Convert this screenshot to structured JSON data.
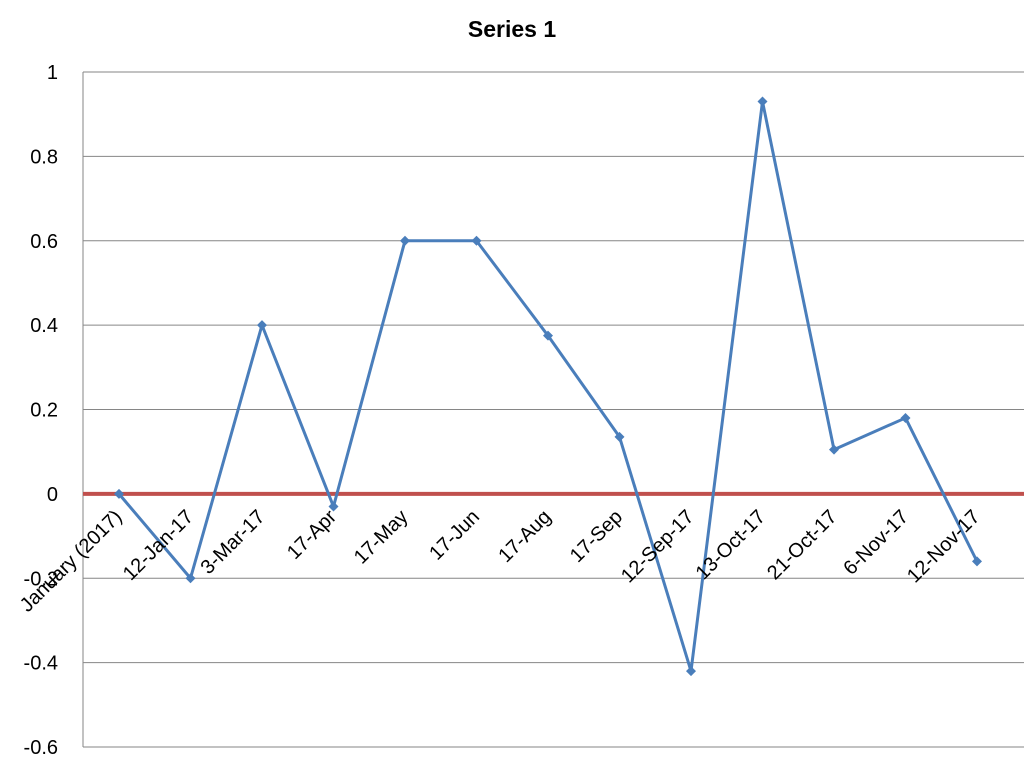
{
  "chart_data": {
    "type": "line",
    "title": "Series 1",
    "xlabel": "",
    "ylabel": "",
    "ylim": [
      -0.6,
      1
    ],
    "yticks": [
      -0.6,
      -0.4,
      -0.2,
      0,
      0.2,
      0.4,
      0.6,
      0.8,
      1
    ],
    "ytick_labels": [
      "-0.6",
      "-0.4",
      "-0.2",
      "0",
      "0.2",
      "0.4",
      "0.6",
      "0.8",
      "1"
    ],
    "grid": true,
    "legend": "none",
    "categories": [
      "January (2017)",
      "12-Jan-17",
      "3-Mar-17",
      "17-Apr",
      "17-May",
      "17-Jun",
      "17-Aug",
      "17-Sep",
      "12-Sep-17",
      "13-Oct-17",
      "21-Oct-17",
      "6-Nov-17",
      "12-Nov-17"
    ],
    "series": [
      {
        "name": "Series 1",
        "color": "#4a7ebb",
        "values": [
          0,
          -0.2,
          0.4,
          -0.03,
          0.6,
          0.6,
          0.375,
          0.135,
          -0.42,
          0.93,
          0.105,
          0.18,
          -0.16
        ]
      }
    ],
    "reference_line": {
      "value": 0,
      "color": "#c0504d"
    },
    "gridline_color": "#868686"
  }
}
